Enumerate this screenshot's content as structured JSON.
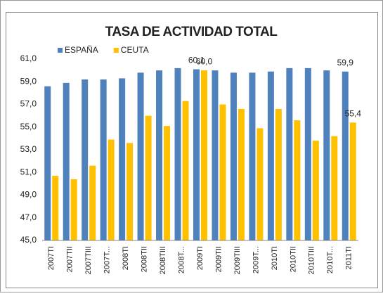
{
  "chart_data": {
    "type": "bar",
    "title": "TASA DE ACTIVIDAD TOTAL",
    "categories": [
      "2007TI",
      "2007TII",
      "2007TIII",
      "2007T...",
      "2008TI",
      "2008TII",
      "2008TIII",
      "2008T...",
      "2009TI",
      "2009TII",
      "2009TIII",
      "2009T...",
      "2010TI",
      "2010TII",
      "2010TIII",
      "2010T...",
      "2011TI"
    ],
    "series": [
      {
        "name": "ESPAÑA",
        "color": "#4f81bd",
        "values": [
          58.6,
          58.9,
          59.2,
          59.2,
          59.3,
          59.8,
          60.0,
          60.2,
          60.1,
          60.0,
          59.8,
          59.8,
          59.9,
          60.2,
          60.2,
          60.0,
          59.9
        ],
        "value_labels": [
          null,
          null,
          null,
          null,
          null,
          null,
          null,
          null,
          "60,1",
          null,
          null,
          null,
          null,
          null,
          null,
          null,
          "59,9"
        ]
      },
      {
        "name": "CEUTA",
        "color": "#ffc000",
        "values": [
          50.7,
          50.4,
          51.6,
          53.9,
          53.6,
          56.0,
          55.1,
          57.3,
          60.0,
          57.0,
          56.6,
          54.9,
          56.6,
          55.6,
          53.8,
          54.2,
          55.4
        ],
        "value_labels": [
          null,
          null,
          null,
          null,
          null,
          null,
          null,
          null,
          "60,0",
          null,
          null,
          null,
          null,
          null,
          null,
          null,
          "55,4"
        ]
      }
    ],
    "ylim": [
      45,
      61
    ],
    "yticks": [
      {
        "value": 45,
        "label": "45,0"
      },
      {
        "value": 47,
        "label": "47,0"
      },
      {
        "value": 49,
        "label": "49,0"
      },
      {
        "value": 51,
        "label": "51,0"
      },
      {
        "value": 53,
        "label": "53,0"
      },
      {
        "value": 55,
        "label": "55,0"
      },
      {
        "value": 57,
        "label": "57,0"
      },
      {
        "value": 59,
        "label": "59,0"
      },
      {
        "value": 61,
        "label": "61,0"
      }
    ],
    "grid": false,
    "legend": "top-left"
  }
}
